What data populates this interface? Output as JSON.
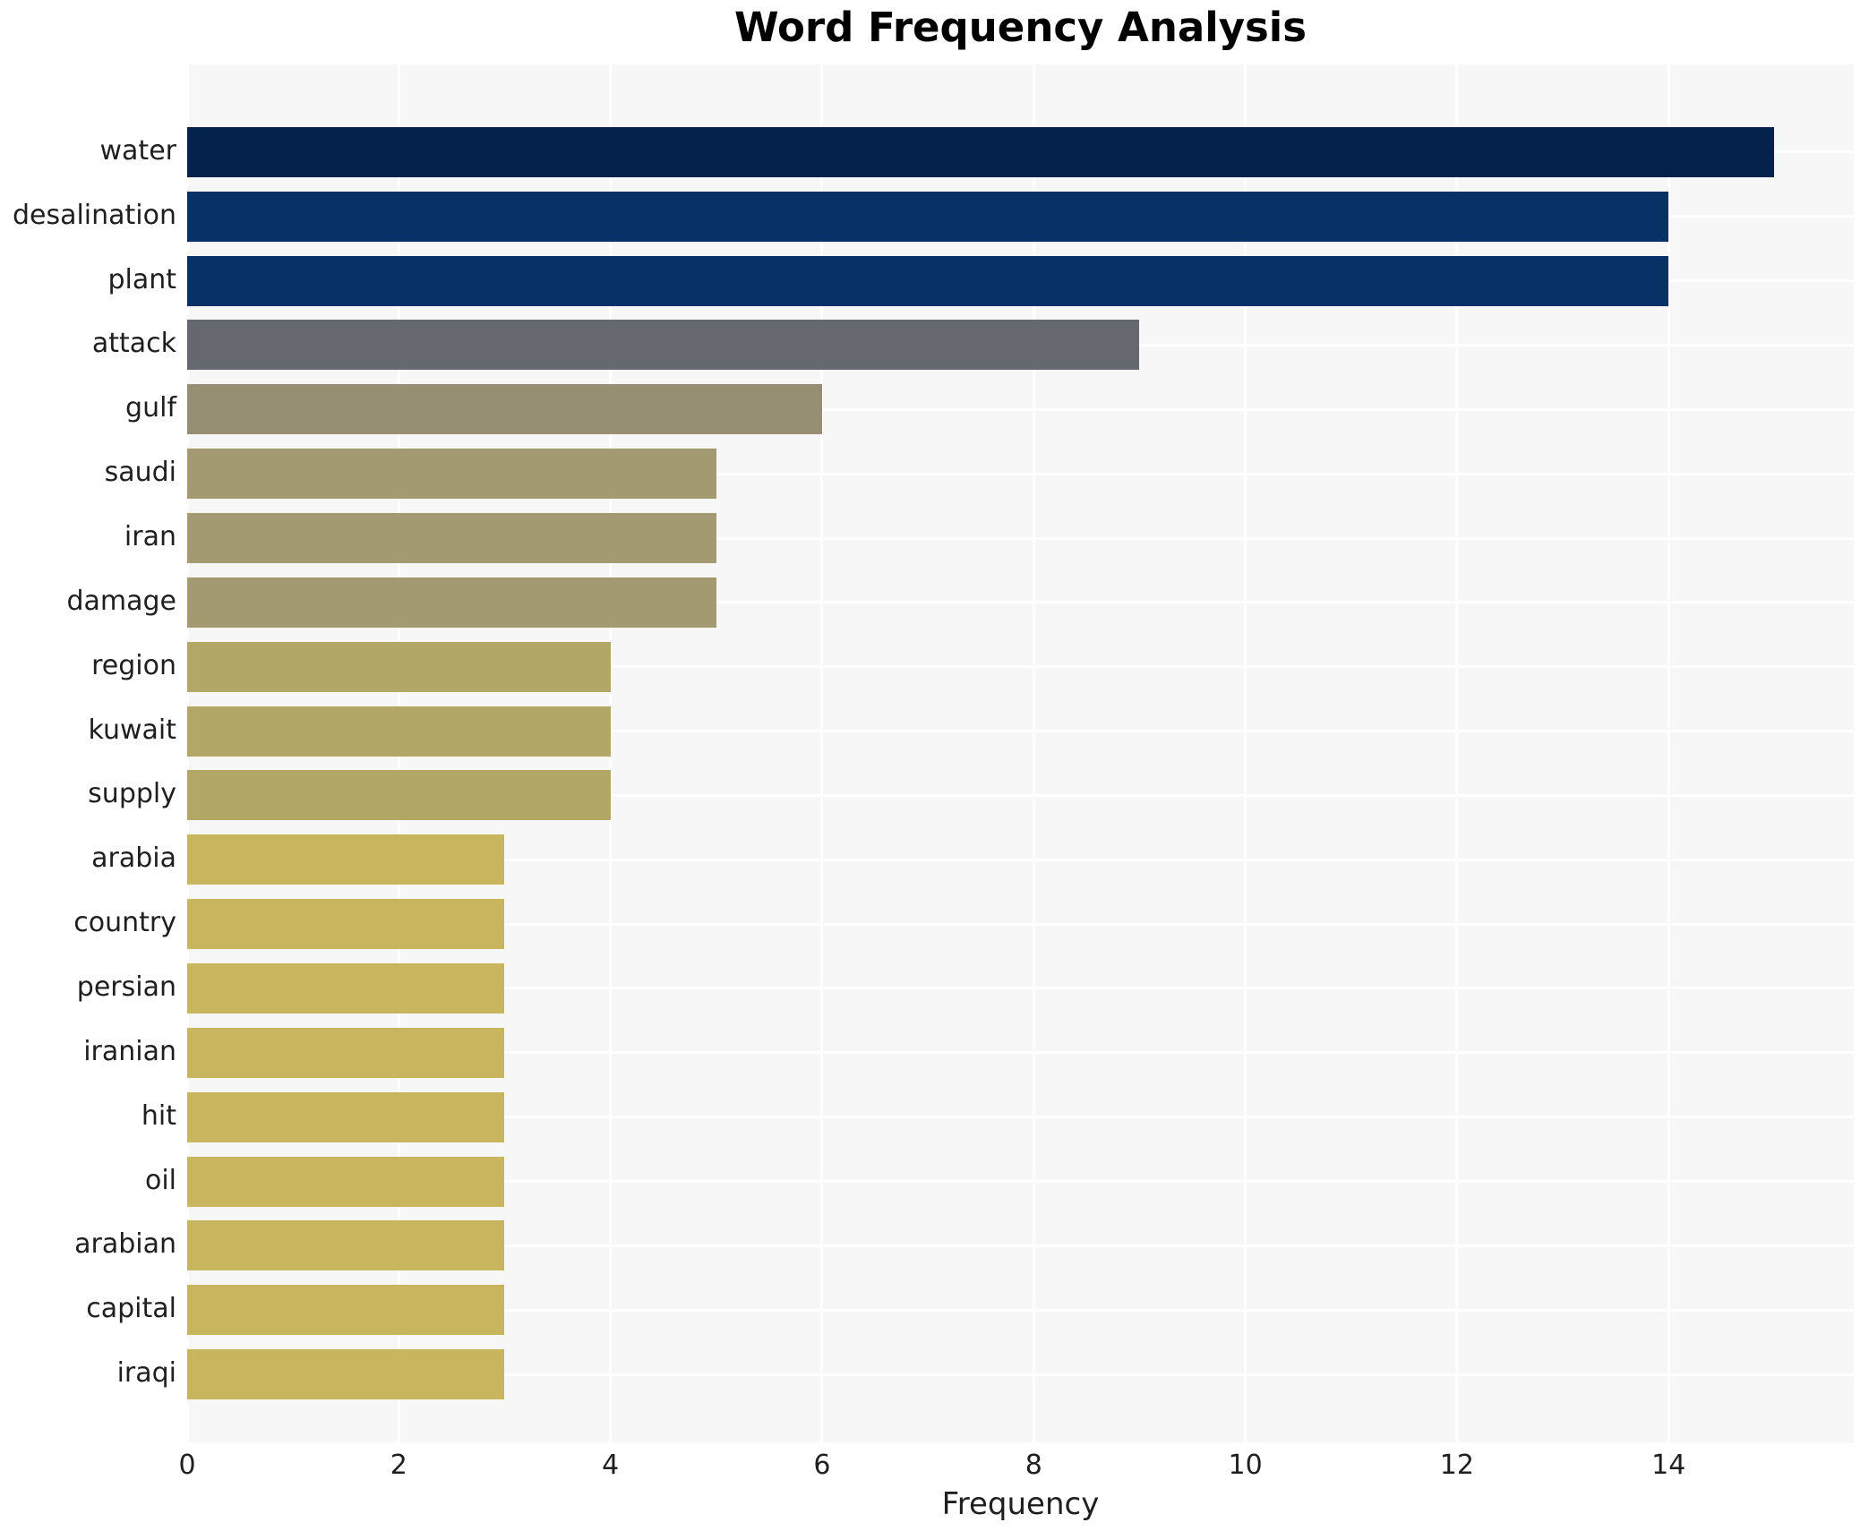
{
  "page": {
    "background": "#ffffff"
  },
  "chart_data": {
    "type": "bar",
    "orientation": "horizontal",
    "title": "Word Frequency Analysis",
    "xlabel": "Frequency",
    "ylabel": "",
    "categories": [
      "water",
      "desalination",
      "plant",
      "attack",
      "gulf",
      "saudi",
      "iran",
      "damage",
      "region",
      "kuwait",
      "supply",
      "arabia",
      "country",
      "persian",
      "iranian",
      "hit",
      "oil",
      "arabian",
      "capital",
      "iraqi"
    ],
    "values": [
      15,
      14,
      14,
      9,
      6,
      5,
      5,
      5,
      4,
      4,
      4,
      3,
      3,
      3,
      3,
      3,
      3,
      3,
      3,
      3
    ],
    "bar_colors": [
      "#04224b",
      "#083168",
      "#083168",
      "#65686f",
      "#968f73",
      "#a39a71",
      "#a39a71",
      "#a39a71",
      "#b3a767",
      "#b3a767",
      "#b3a767",
      "#c8b65f",
      "#c8b65f",
      "#c8b65f",
      "#c8b65f",
      "#c8b65f",
      "#c8b65f",
      "#c8b65f",
      "#c8b65f",
      "#c8b65f"
    ],
    "xlim": [
      0,
      15.75
    ],
    "xticks": [
      0,
      2,
      4,
      6,
      8,
      10,
      12,
      14
    ],
    "grid": true,
    "legend": "none",
    "style": {
      "plot_background": "#f7f7f8",
      "grid_color": "#ffffff",
      "text_color": "#1f1f1f",
      "title_color": "#000000"
    }
  }
}
